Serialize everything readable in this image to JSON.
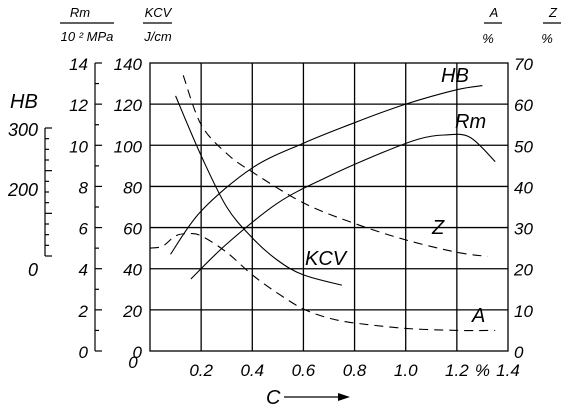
{
  "chart_data": {
    "type": "line",
    "xlabel": "C",
    "x_unit": "%",
    "xlim": [
      0,
      1.4
    ],
    "x_ticks": [
      "0.2",
      "0.4",
      "0.6",
      "0.8",
      "1.0",
      "1.2",
      "%",
      "1.4"
    ],
    "grid": true,
    "axes": {
      "rm": {
        "label_top": "Rm",
        "label_bottom": "10 ² MPa",
        "ticks": [
          "0",
          "2",
          "4",
          "6",
          "8",
          "10",
          "12",
          "14"
        ],
        "range": [
          0,
          14
        ]
      },
      "kcv": {
        "label_top": "KCV",
        "label_bottom": "J/cm",
        "ticks": [
          "0",
          "20",
          "40",
          "60",
          "80",
          "100",
          "120",
          "140"
        ],
        "range": [
          0,
          140
        ]
      },
      "hb": {
        "label": "HB",
        "ticks": [
          "300",
          "200",
          "0"
        ],
        "range": [
          0,
          300
        ]
      },
      "a": {
        "label_top": "A",
        "label_bottom": "%",
        "ticks": [
          "0",
          "10",
          "20",
          "30",
          "40",
          "50",
          "60",
          "70"
        ],
        "range": [
          0,
          70
        ]
      },
      "z": {
        "label_top": "Z",
        "label_bottom": "%"
      }
    },
    "series": [
      {
        "name": "HB",
        "axis": "kcv",
        "style": "solid",
        "x": [
          0.08,
          0.2,
          0.4,
          0.6,
          0.8,
          1.0,
          1.2,
          1.3
        ],
        "y": [
          47,
          68,
          89,
          101,
          111,
          120,
          127,
          129
        ]
      },
      {
        "name": "Rm",
        "axis": "rm",
        "style": "solid",
        "x": [
          0.16,
          0.3,
          0.5,
          0.7,
          0.9,
          1.05,
          1.15,
          1.25,
          1.35
        ],
        "y": [
          3.5,
          5.2,
          7.2,
          8.5,
          9.6,
          10.3,
          10.5,
          10.4,
          9.2
        ]
      },
      {
        "name": "KCV",
        "axis": "kcv",
        "style": "solid",
        "x": [
          0.1,
          0.2,
          0.3,
          0.4,
          0.5,
          0.6,
          0.75
        ],
        "y": [
          124,
          95,
          70,
          55,
          44,
          37,
          32
        ]
      },
      {
        "name": "Z",
        "axis": "a",
        "style": "dashed",
        "x": [
          0.13,
          0.2,
          0.3,
          0.4,
          0.6,
          0.8,
          1.0,
          1.2,
          1.32
        ],
        "y": [
          67,
          55,
          48,
          43.5,
          36,
          31,
          27,
          24,
          23
        ]
      },
      {
        "name": "A",
        "axis": "a",
        "style": "dashed",
        "x": [
          0.0,
          0.05,
          0.1,
          0.15,
          0.2,
          0.3,
          0.4,
          0.5,
          0.6,
          0.7,
          0.8,
          1.0,
          1.2,
          1.35
        ],
        "y": [
          25,
          25.5,
          28,
          28.5,
          28,
          24,
          18.5,
          14,
          10.2,
          8,
          6.8,
          5.5,
          5,
          5
        ]
      }
    ],
    "series_labels": [
      "HB",
      "Rm",
      "KCV",
      "Z",
      "A"
    ]
  }
}
